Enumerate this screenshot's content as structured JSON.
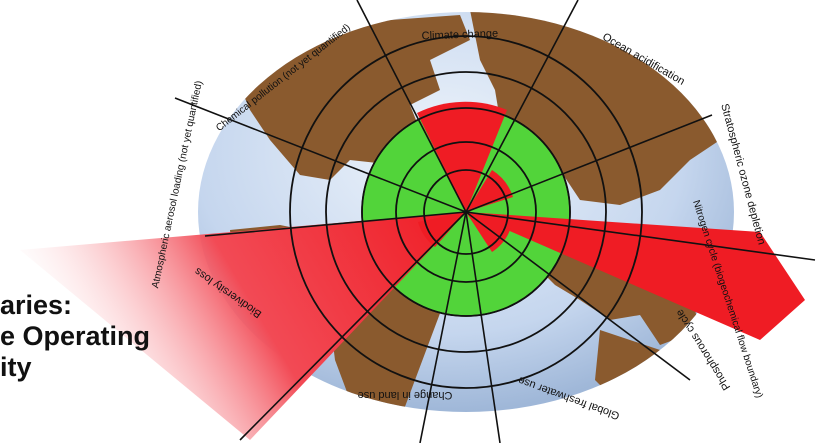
{
  "diagram": {
    "labels": {
      "climate_change": "Climate change",
      "ocean_acidification": "Ocean acidification",
      "ozone_depletion": "Stratospheric ozone depletion",
      "nitrogen_cycle": "Nitrogen cycle (biogeochemical flow boundary)",
      "phosphorus_cycle": "Phosphorous cycle",
      "freshwater_use": "Global freshwater use",
      "land_use": "Change in land use",
      "biodiversity_loss": "Biodiversity loss",
      "aerosol_loading": "Atmospheric aerosol loading (not yet quantified)",
      "chemical_pollution": "Chemical pollution (not yet quantified)"
    },
    "colors": {
      "ocean": "#c7d7ee",
      "land": "#8a5a2e",
      "safe_zone": "#52d43a",
      "exceeded": "#ef1c24",
      "lines": "#111111"
    }
  },
  "overlay_title": {
    "line1": "aries:",
    "line2": "e Operating",
    "line3": "ity"
  }
}
